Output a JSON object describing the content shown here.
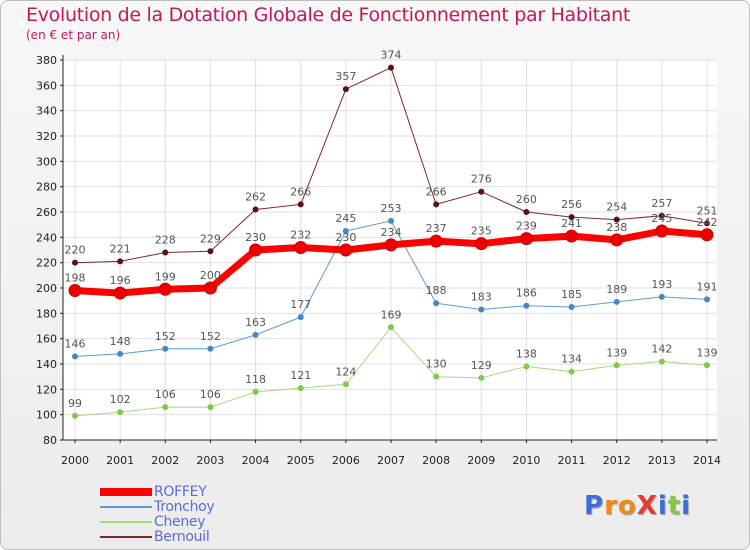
{
  "title": "Evolution de la Dotation Globale de Fonctionnement par Habitant",
  "subtitle": "(en € et par an)",
  "logo": {
    "text": "ProXiti",
    "letter_colors": [
      "#3b6fd6",
      "#f08a16",
      "#f08a16",
      "#e53935",
      "#3b6fd6",
      "#8bc34a",
      "#3b6fd6"
    ]
  },
  "chart_data": {
    "type": "line",
    "x": [
      "2000",
      "2001",
      "2002",
      "2003",
      "2004",
      "2005",
      "2006",
      "2007",
      "2008",
      "2009",
      "2010",
      "2011",
      "2012",
      "2013",
      "2014"
    ],
    "ylim": [
      80,
      380
    ],
    "yticks": [
      80,
      100,
      120,
      140,
      160,
      180,
      200,
      220,
      240,
      260,
      280,
      300,
      320,
      340,
      360,
      380
    ],
    "grid": true,
    "series": [
      {
        "name": "Bernouil",
        "color": "#7b2a2a",
        "marker": "#5a1212",
        "width": 1,
        "values": [
          220,
          221,
          228,
          229,
          262,
          266,
          357,
          374,
          266,
          276,
          260,
          256,
          254,
          257,
          251
        ]
      },
      {
        "name": "Tronchoy",
        "color": "#5a9bd4",
        "marker": "#4a87c0",
        "width": 1,
        "values": [
          146,
          148,
          152,
          152,
          163,
          177,
          245,
          253,
          188,
          183,
          186,
          185,
          189,
          193,
          191
        ]
      },
      {
        "name": "Cheney",
        "color": "#a5dc7a",
        "marker": "#7ec84a",
        "width": 1,
        "values": [
          99,
          102,
          106,
          106,
          118,
          121,
          124,
          169,
          130,
          129,
          138,
          134,
          139,
          142,
          139
        ]
      },
      {
        "name": "ROFFEY",
        "color": "#ff0000",
        "marker": "#ee0000",
        "width": 7,
        "values": [
          198,
          196,
          199,
          200,
          230,
          232,
          230,
          234,
          237,
          235,
          239,
          241,
          238,
          245,
          242
        ]
      }
    ],
    "legend": [
      "ROFFEY",
      "Tronchoy",
      "Cheney",
      "Bernouil"
    ]
  }
}
